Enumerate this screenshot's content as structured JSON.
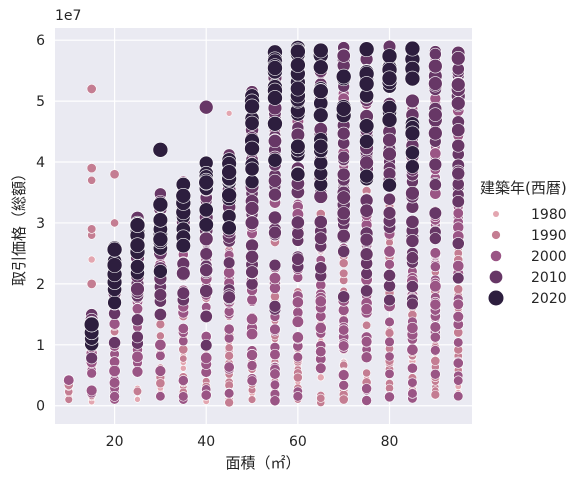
{
  "chart_data": {
    "type": "scatter",
    "xlabel": "面積（㎡）",
    "ylabel": "取引価格（総額）",
    "y_offset_text": "1e7",
    "xlim": [
      7,
      98
    ],
    "ylim": [
      -3000000,
      62000000
    ],
    "xticks": [
      20,
      40,
      60,
      80
    ],
    "yticks": [
      0,
      10000000,
      20000000,
      30000000,
      40000000,
      50000000,
      60000000
    ],
    "ytick_labels": [
      "0",
      "1",
      "2",
      "3",
      "4",
      "5",
      "6"
    ],
    "grid": true,
    "background": "#eaeaf2",
    "legend": {
      "title": "建築年(西暦)",
      "placement": "right",
      "entries": [
        {
          "label": "1980",
          "year": 1980,
          "color": "#e3a6b0",
          "size": 4
        },
        {
          "label": "1990",
          "year": 1990,
          "color": "#c47d92",
          "size": 5
        },
        {
          "label": "2000",
          "year": 2000,
          "color": "#9a5585",
          "size": 6
        },
        {
          "label": "2010",
          "year": 2010,
          "color": "#673766",
          "size": 7
        },
        {
          "label": "2020",
          "year": 2020,
          "color": "#2d1e3e",
          "size": 8
        }
      ]
    },
    "series": [
      {
        "x": 10,
        "y_ranges": [
          [
            1000000,
            4500000
          ]
        ],
        "years": [
          1975,
          2000
        ]
      },
      {
        "x": 15,
        "y_ranges": [
          [
            500000,
            15000000
          ]
        ],
        "years": [
          1975,
          2020
        ],
        "extra_points": [
          [
            15,
            52000000,
            1995
          ],
          [
            15,
            39000000,
            1995
          ],
          [
            15,
            37000000,
            1990
          ],
          [
            15,
            29000000,
            1992
          ],
          [
            15,
            28000000,
            1990
          ],
          [
            15,
            24000000,
            1985
          ],
          [
            15,
            20000000,
            1995
          ]
        ]
      },
      {
        "x": 20,
        "y_ranges": [
          [
            1000000,
            26000000
          ]
        ],
        "years": [
          1975,
          2020
        ],
        "extra_points": [
          [
            20,
            38000000,
            1995
          ],
          [
            20,
            30000000,
            1990
          ]
        ]
      },
      {
        "x": 25,
        "y_ranges": [
          [
            1000000,
            31000000
          ]
        ],
        "years": [
          1975,
          2020
        ]
      },
      {
        "x": 30,
        "y_ranges": [
          [
            1500000,
            35000000
          ]
        ],
        "years": [
          1975,
          2020
        ],
        "extra_points": [
          [
            30,
            42000000,
            2020
          ]
        ]
      },
      {
        "x": 35,
        "y_ranges": [
          [
            500000,
            37000000
          ]
        ],
        "years": [
          1975,
          2020
        ]
      },
      {
        "x": 40,
        "y_ranges": [
          [
            500000,
            40000000
          ]
        ],
        "years": [
          1975,
          2020
        ],
        "extra_points": [
          [
            40,
            49000000,
            2015
          ]
        ]
      },
      {
        "x": 45,
        "y_ranges": [
          [
            500000,
            42000000
          ]
        ],
        "years": [
          1975,
          2020
        ],
        "extra_points": [
          [
            45,
            48000000,
            1980
          ]
        ]
      },
      {
        "x": 50,
        "y_ranges": [
          [
            1000000,
            52000000
          ]
        ],
        "years": [
          1975,
          2020
        ]
      },
      {
        "x": 55,
        "y_ranges": [
          [
            500000,
            58000000
          ]
        ],
        "years": [
          1975,
          2020
        ]
      },
      {
        "x": 60,
        "y_ranges": [
          [
            1000000,
            59000000
          ]
        ],
        "years": [
          1975,
          2020
        ]
      },
      {
        "x": 65,
        "y_ranges": [
          [
            500000,
            59000000
          ]
        ],
        "years": [
          1975,
          2020
        ]
      },
      {
        "x": 70,
        "y_ranges": [
          [
            500000,
            59000000
          ]
        ],
        "years": [
          1975,
          2020
        ]
      },
      {
        "x": 75,
        "y_ranges": [
          [
            500000,
            59000000
          ]
        ],
        "years": [
          1975,
          2020
        ]
      },
      {
        "x": 80,
        "y_ranges": [
          [
            500000,
            59000000
          ]
        ],
        "years": [
          1975,
          2020
        ]
      },
      {
        "x": 85,
        "y_ranges": [
          [
            1000000,
            59000000
          ]
        ],
        "years": [
          1975,
          2020
        ]
      },
      {
        "x": 90,
        "y_ranges": [
          [
            1000000,
            59000000
          ]
        ],
        "years": [
          1975,
          2015
        ]
      },
      {
        "x": 95,
        "y_ranges": [
          [
            1000000,
            58000000
          ]
        ],
        "years": [
          1975,
          2015
        ]
      }
    ]
  }
}
